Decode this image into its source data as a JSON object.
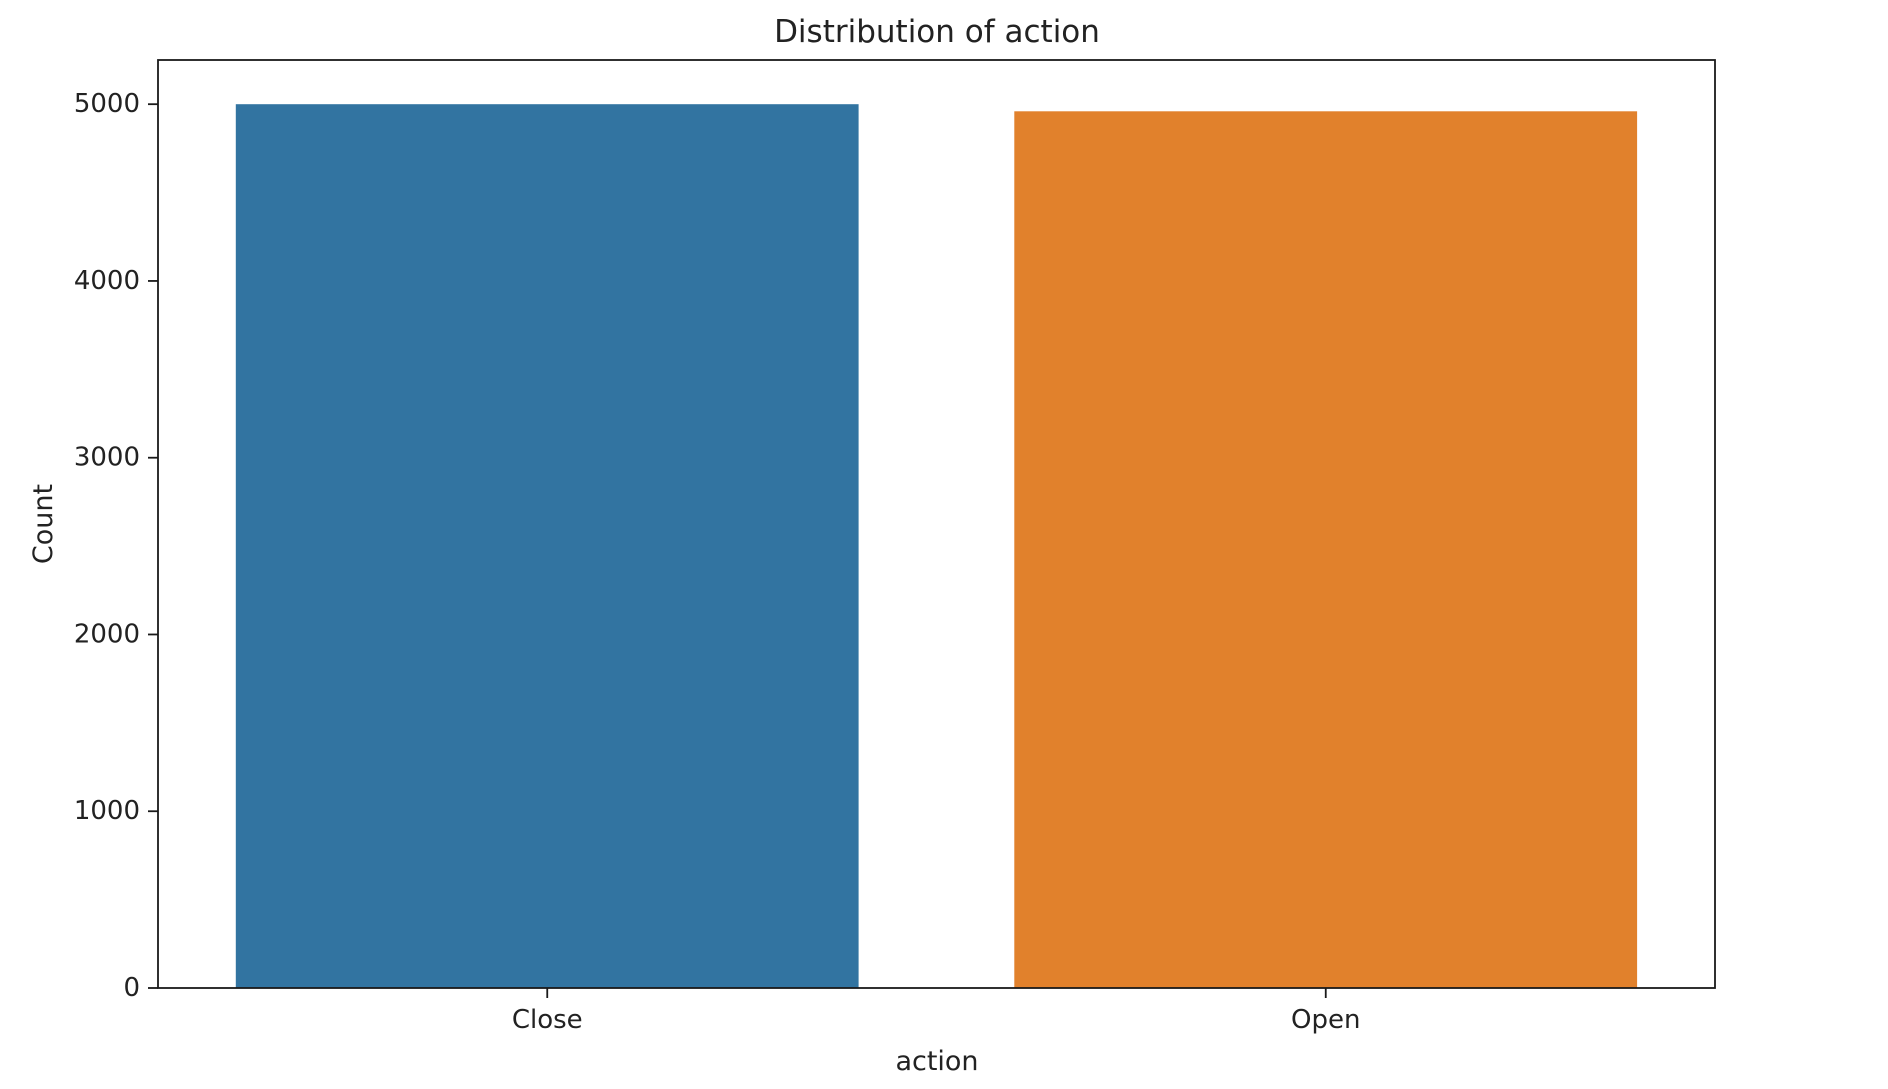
{
  "chart_data": {
    "type": "bar",
    "title": "Distribution of action",
    "xlabel": "action",
    "ylabel": "Count",
    "categories": [
      "Close",
      "Open"
    ],
    "values": [
      5000,
      4960
    ],
    "colors": [
      "#3274a1",
      "#e1812c"
    ],
    "ylim": [
      0,
      5250
    ],
    "yticks": [
      "0",
      "1000",
      "2000",
      "3000",
      "4000",
      "5000"
    ],
    "grid": false,
    "legend": "none"
  }
}
